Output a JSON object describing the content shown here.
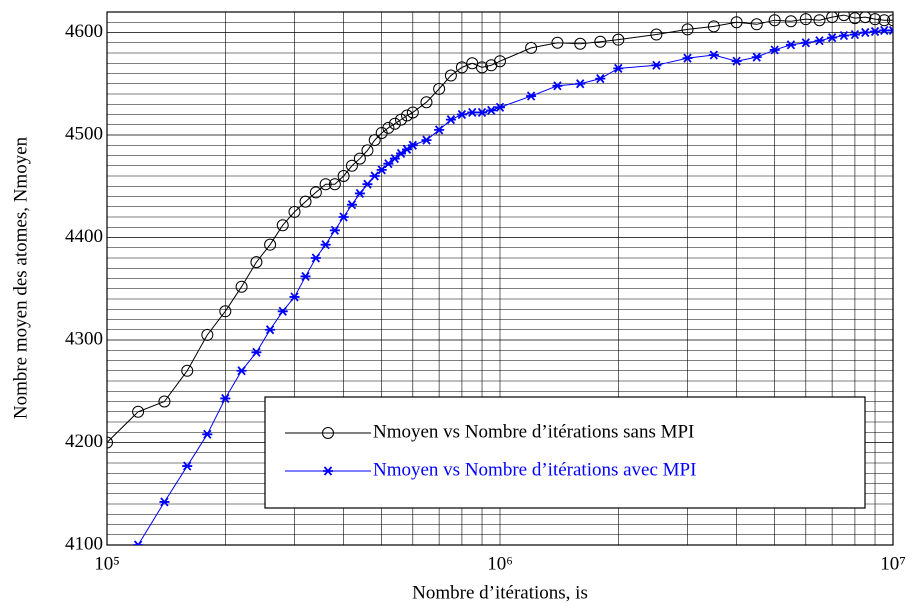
{
  "chart_data": {
    "type": "line",
    "xlabel": "Nombre d’itérations, is",
    "ylabel": "Nombre moyen des atomes, Nmoyen",
    "xscale": "log",
    "xlim": [
      100000,
      10000000
    ],
    "xticks": [
      {
        "value": 100000,
        "label": "10⁵"
      },
      {
        "value": 1000000,
        "label": "10⁶"
      },
      {
        "value": 10000000,
        "label": "10⁷"
      }
    ],
    "ylim": [
      4100,
      4620
    ],
    "yticks": [
      4100,
      4200,
      4300,
      4400,
      4500,
      4600
    ],
    "grid": true,
    "x_minor_grid": true,
    "y_minor_grid": 10,
    "legend": "lower right",
    "series": [
      {
        "name": "Nmoyen vs Nombre d’itérations sans MPI",
        "color": "#000000",
        "marker": "circle",
        "x": [
          100000,
          120000,
          140000,
          160000,
          180000,
          200000,
          220000,
          240000,
          260000,
          280000,
          300000,
          320000,
          340000,
          360000,
          380000,
          400000,
          420000,
          440000,
          460000,
          480000,
          500000,
          520000,
          540000,
          560000,
          580000,
          600000,
          650000,
          700000,
          750000,
          800000,
          850000,
          900000,
          950000,
          1000000,
          1200000,
          1400000,
          1600000,
          1800000,
          2000000,
          2500000,
          3000000,
          3500000,
          4000000,
          4500000,
          5000000,
          5500000,
          6000000,
          6500000,
          7000000,
          7500000,
          8000000,
          8500000,
          9000000,
          9500000,
          10000000
        ],
        "values": [
          4200,
          4230,
          4240,
          4270,
          4305,
          4328,
          4352,
          4376,
          4393,
          4412,
          4425,
          4435,
          4444,
          4452,
          4452,
          4460,
          4470,
          4477,
          4485,
          4495,
          4502,
          4507,
          4511,
          4515,
          4519,
          4522,
          4532,
          4545,
          4558,
          4566,
          4570,
          4566,
          4568,
          4572,
          4585,
          4590,
          4589,
          4591,
          4593,
          4598,
          4603,
          4606,
          4610,
          4608,
          4612,
          4611,
          4613,
          4612,
          4615,
          4617,
          4614,
          4615,
          4613,
          4612,
          4612
        ]
      },
      {
        "name": "Nmoyen vs Nombre d’itérations avec MPI",
        "color": "#0000ff",
        "marker": "star",
        "x": [
          120000,
          140000,
          160000,
          180000,
          200000,
          220000,
          240000,
          260000,
          280000,
          300000,
          320000,
          340000,
          360000,
          380000,
          400000,
          420000,
          440000,
          460000,
          480000,
          500000,
          520000,
          540000,
          560000,
          580000,
          600000,
          650000,
          700000,
          750000,
          800000,
          850000,
          900000,
          950000,
          1000000,
          1200000,
          1400000,
          1600000,
          1800000,
          2000000,
          2500000,
          3000000,
          3500000,
          4000000,
          4500000,
          5000000,
          5500000,
          6000000,
          6500000,
          7000000,
          7500000,
          8000000,
          8500000,
          9000000,
          9500000,
          10000000
        ],
        "values": [
          4100,
          4142,
          4177,
          4208,
          4243,
          4270,
          4288,
          4310,
          4328,
          4342,
          4362,
          4380,
          4393,
          4407,
          4420,
          4432,
          4443,
          4452,
          4460,
          4466,
          4472,
          4477,
          4482,
          4486,
          4490,
          4495,
          4505,
          4515,
          4520,
          4522,
          4522,
          4524,
          4527,
          4538,
          4548,
          4550,
          4555,
          4565,
          4568,
          4575,
          4578,
          4572,
          4576,
          4583,
          4588,
          4590,
          4592,
          4595,
          4597,
          4598,
          4600,
          4601,
          4602,
          4602
        ]
      }
    ]
  }
}
